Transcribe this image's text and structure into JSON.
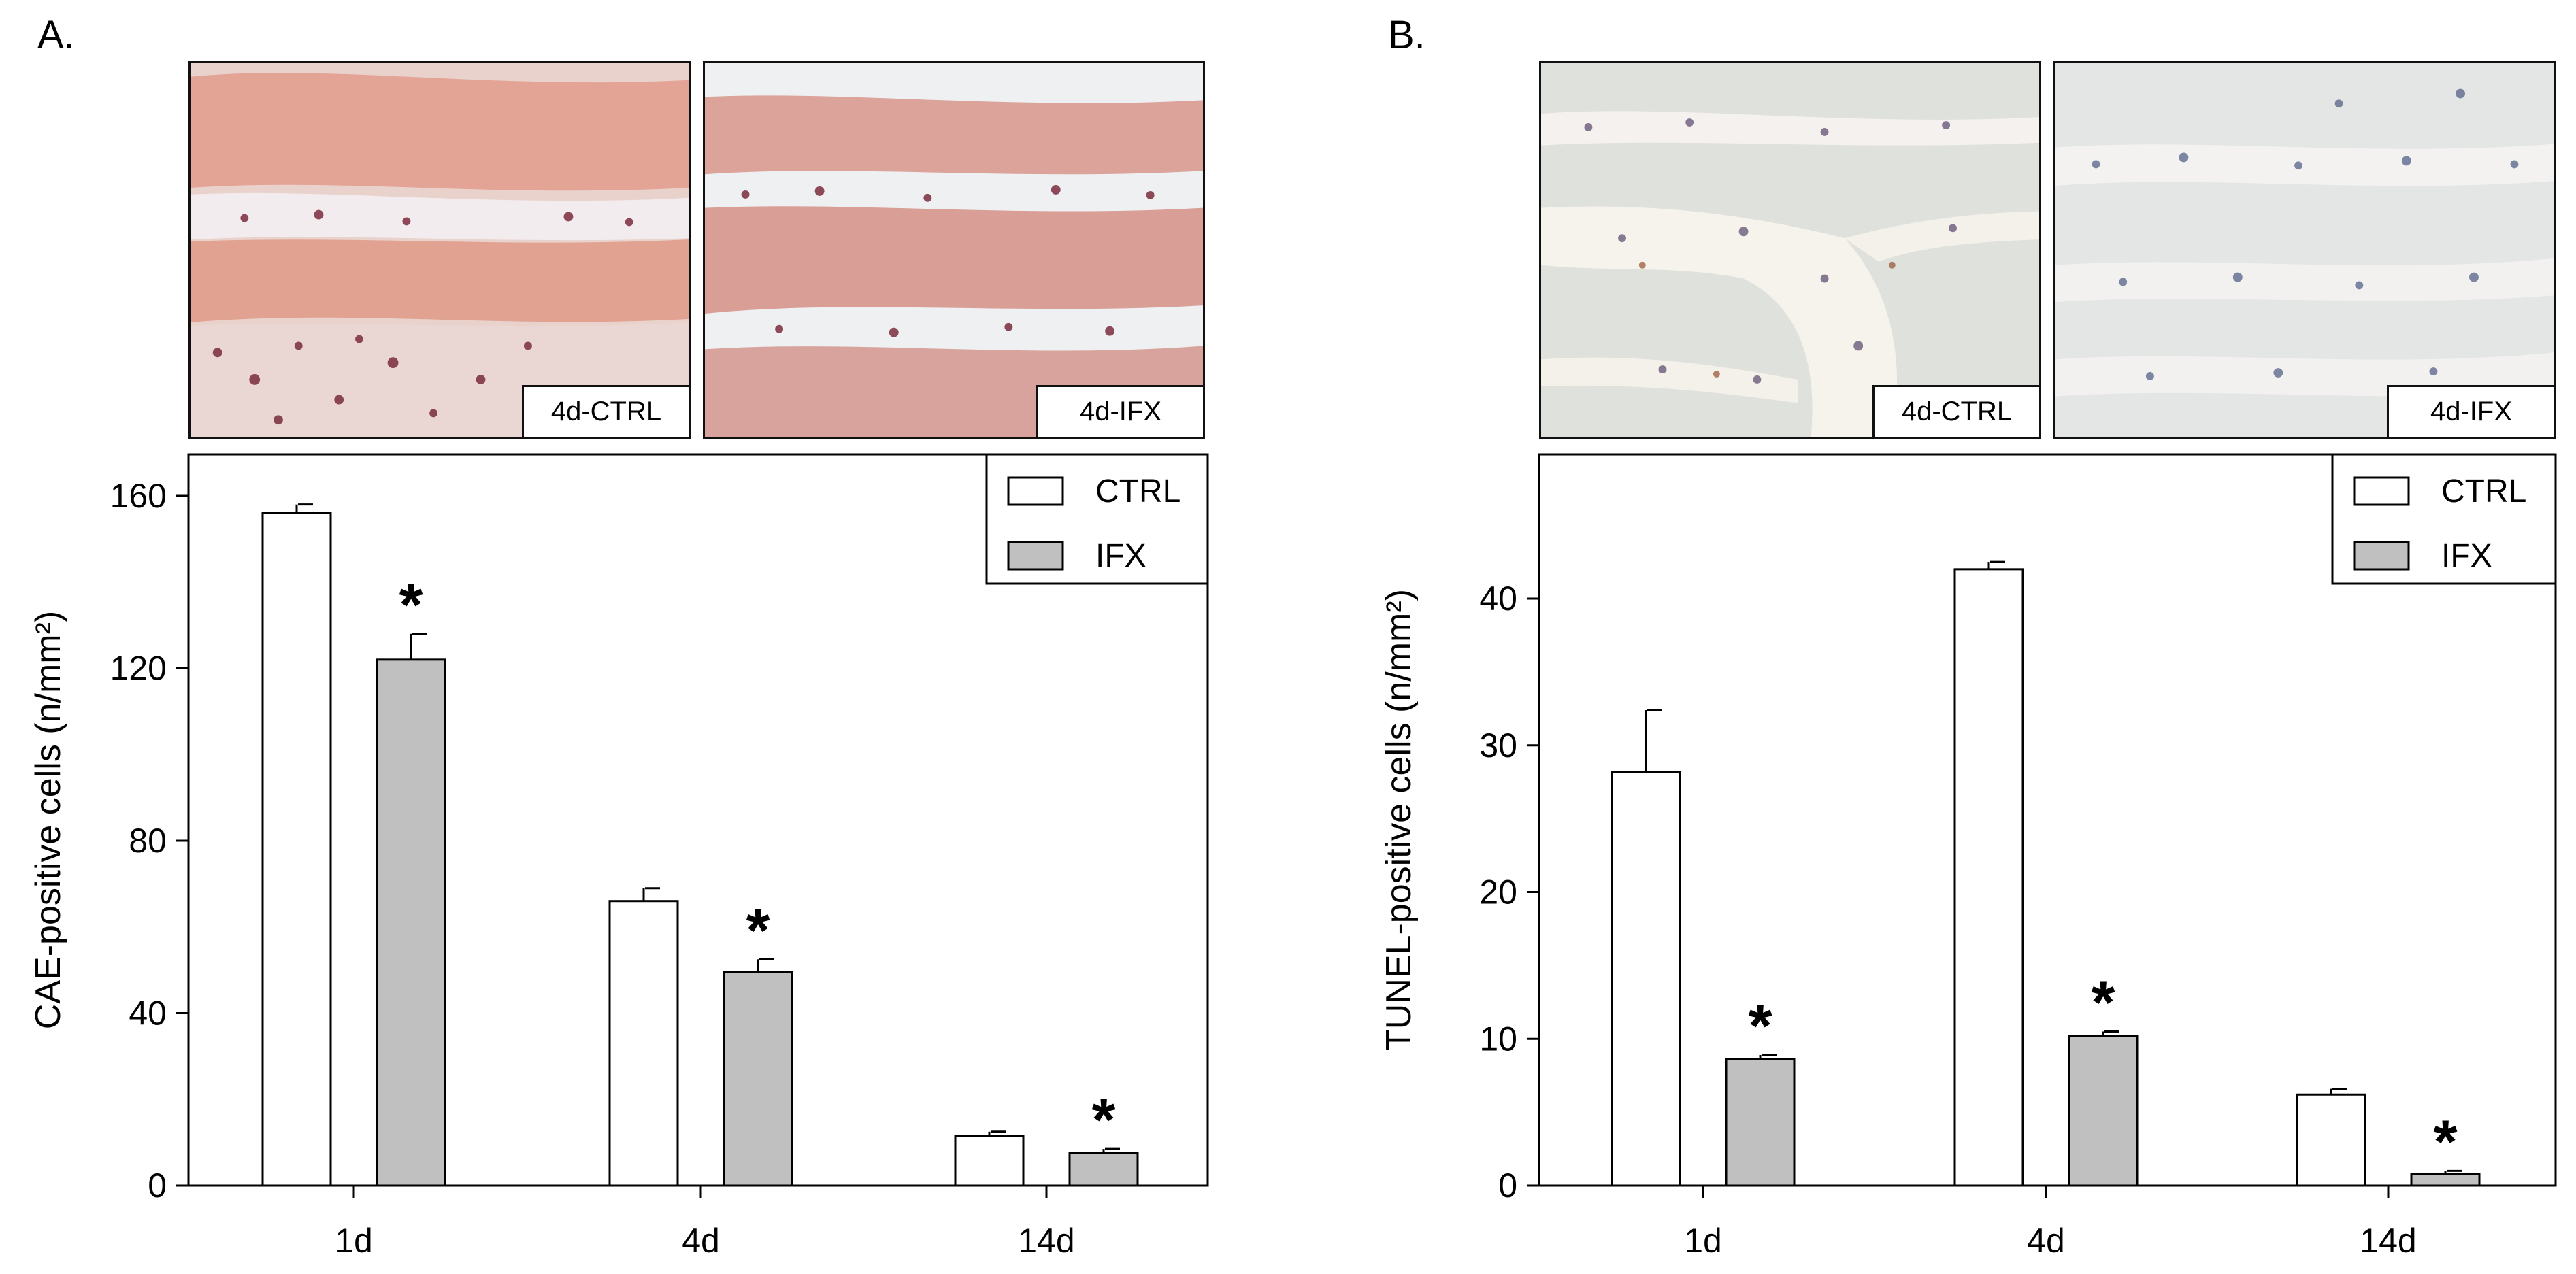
{
  "panels": [
    {
      "label": "A.",
      "images": [
        {
          "label": "4d-CTRL",
          "stain": "cae-ctrl"
        },
        {
          "label": "4d-IFX",
          "stain": "cae-ifx"
        }
      ]
    },
    {
      "label": "B.",
      "images": [
        {
          "label": "4d-CTRL",
          "stain": "tunel-ctrl"
        },
        {
          "label": "4d-IFX",
          "stain": "tunel-ifx"
        }
      ]
    }
  ],
  "colors": {
    "ctrl": "#ffffff",
    "ifx": "#c0c0c0",
    "axis": "#000000"
  },
  "chart_data": [
    {
      "type": "bar",
      "categories": [
        "1d",
        "4d",
        "14d"
      ],
      "ylabel": "CAE-positive cells (n/mm²)",
      "ylim": [
        0,
        160
      ],
      "yticks": [
        "0",
        "40",
        "80",
        "120",
        "160"
      ],
      "legend_position": "top-right",
      "series": [
        {
          "name": "CTRL",
          "values": [
            156,
            66,
            11.5
          ],
          "errors": [
            2,
            3,
            1
          ]
        },
        {
          "name": "IFX",
          "values": [
            122,
            49.5,
            7.5
          ],
          "errors": [
            6,
            3,
            1
          ]
        }
      ],
      "significance": [
        {
          "category": "1d",
          "series": "IFX",
          "mark": "*"
        },
        {
          "category": "4d",
          "series": "IFX",
          "mark": "*"
        },
        {
          "category": "14d",
          "series": "IFX",
          "mark": "*"
        }
      ]
    },
    {
      "type": "bar",
      "categories": [
        "1d",
        "4d",
        "14d"
      ],
      "ylabel": "TUNEL-positive cells (n/mm²)",
      "ylim": [
        0,
        50
      ],
      "yticks": [
        "0",
        "10",
        "20",
        "30",
        "40"
      ],
      "legend_position": "top-right",
      "series": [
        {
          "name": "CTRL",
          "values": [
            28.2,
            42,
            6.2
          ],
          "errors": [
            4.2,
            0.5,
            0.4
          ]
        },
        {
          "name": "IFX",
          "values": [
            8.6,
            10.2,
            0.8
          ],
          "errors": [
            0.3,
            0.3,
            0.2
          ]
        }
      ],
      "significance": [
        {
          "category": "1d",
          "series": "IFX",
          "mark": "*"
        },
        {
          "category": "4d",
          "series": "IFX",
          "mark": "*"
        },
        {
          "category": "14d",
          "series": "IFX",
          "mark": "*"
        }
      ]
    }
  ]
}
